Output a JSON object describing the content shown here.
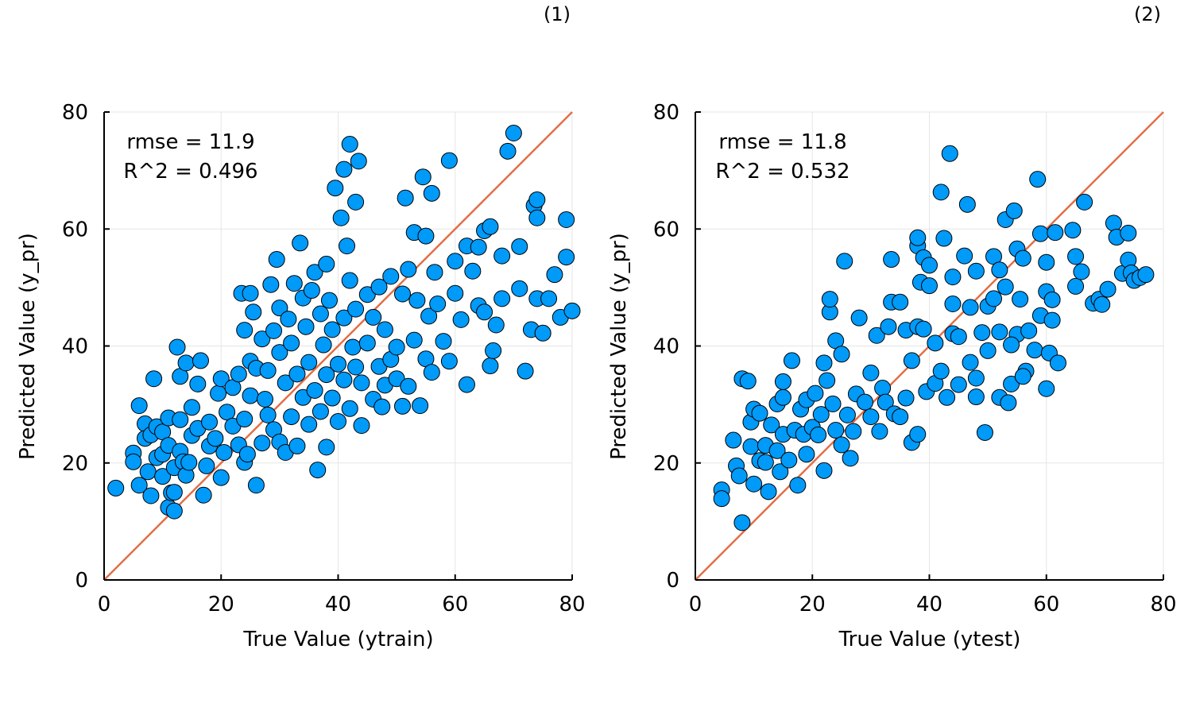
{
  "chart_data": [
    {
      "type": "scatter",
      "panel_label": "(1)",
      "xlabel": "True Value (ytrain)",
      "ylabel": "Predicted Value (y_pr)",
      "xlim": [
        0,
        80
      ],
      "ylim": [
        0,
        80
      ],
      "xticks": [
        "0",
        "20",
        "40",
        "60",
        "80"
      ],
      "yticks": [
        "0",
        "20",
        "40",
        "60",
        "80"
      ],
      "grid": true,
      "legend": "none",
      "annotations": [
        "rmse = 11.9",
        "R^2 = 0.496"
      ],
      "reference_line": {
        "from": [
          0,
          0
        ],
        "to": [
          80,
          80
        ],
        "color": "#e26f46"
      },
      "marker_color": "#009af9",
      "points": [
        [
          2,
          15.7
        ],
        [
          5,
          21.7
        ],
        [
          5,
          20.2
        ],
        [
          6,
          29.8
        ],
        [
          6,
          16.2
        ],
        [
          7,
          26.7
        ],
        [
          7,
          24.2
        ],
        [
          7.5,
          18.5
        ],
        [
          8,
          14.4
        ],
        [
          8,
          24.8
        ],
        [
          8.5,
          34.4
        ],
        [
          9,
          20.9
        ],
        [
          9,
          26.2
        ],
        [
          10,
          25.3
        ],
        [
          10,
          17.7
        ],
        [
          10,
          21.5
        ],
        [
          11,
          23
        ],
        [
          11,
          27.7
        ],
        [
          11,
          12.4
        ],
        [
          11.5,
          14.9
        ],
        [
          12,
          15
        ],
        [
          12,
          19.2
        ],
        [
          12,
          11.8
        ],
        [
          12.5,
          39.8
        ],
        [
          13,
          22
        ],
        [
          13,
          34.8
        ],
        [
          13,
          27.4
        ],
        [
          13.5,
          20.2
        ],
        [
          14,
          17.9
        ],
        [
          14,
          37.1
        ],
        [
          14.5,
          20.1
        ],
        [
          15,
          29.5
        ],
        [
          15,
          24.7
        ],
        [
          16,
          33.5
        ],
        [
          16,
          25.9
        ],
        [
          16.5,
          37.5
        ],
        [
          17,
          14.5
        ],
        [
          17.5,
          19.5
        ],
        [
          18,
          27
        ],
        [
          18,
          22.9
        ],
        [
          19,
          24.2
        ],
        [
          19.5,
          31.9
        ],
        [
          20,
          17.5
        ],
        [
          20,
          34.4
        ],
        [
          20.5,
          21.8
        ],
        [
          21,
          28.7
        ],
        [
          22,
          26.3
        ],
        [
          22,
          32.9
        ],
        [
          23,
          23.1
        ],
        [
          23,
          35.2
        ],
        [
          23.5,
          49
        ],
        [
          24,
          42.7
        ],
        [
          24,
          27.5
        ],
        [
          24,
          20.1
        ],
        [
          24.5,
          21.5
        ],
        [
          25,
          37.4
        ],
        [
          25,
          49
        ],
        [
          25,
          31.5
        ],
        [
          25.5,
          45.8
        ],
        [
          26,
          36.2
        ],
        [
          26,
          16.2
        ],
        [
          27,
          41.2
        ],
        [
          27,
          23.4
        ],
        [
          27.5,
          30.9
        ],
        [
          28,
          35.8
        ],
        [
          28,
          28.2
        ],
        [
          28.5,
          50.5
        ],
        [
          29,
          25.7
        ],
        [
          29,
          42.6
        ],
        [
          29.5,
          54.8
        ],
        [
          30,
          46.5
        ],
        [
          30,
          38.9
        ],
        [
          30,
          23.6
        ],
        [
          31,
          33.7
        ],
        [
          31,
          21.8
        ],
        [
          31.5,
          44.6
        ],
        [
          32,
          27.9
        ],
        [
          32,
          40.5
        ],
        [
          32.5,
          50.7
        ],
        [
          33,
          35.2
        ],
        [
          33,
          22.9
        ],
        [
          33.5,
          57.6
        ],
        [
          34,
          48.2
        ],
        [
          34,
          31.2
        ],
        [
          34.5,
          43.3
        ],
        [
          35,
          26.6
        ],
        [
          35,
          37.2
        ],
        [
          35.5,
          49.5
        ],
        [
          36,
          52.6
        ],
        [
          36,
          32.4
        ],
        [
          36.5,
          18.8
        ],
        [
          37,
          45.5
        ],
        [
          37,
          28.8
        ],
        [
          37.5,
          40.2
        ],
        [
          38,
          54
        ],
        [
          38,
          35.1
        ],
        [
          38,
          22.7
        ],
        [
          38.5,
          47.8
        ],
        [
          39,
          42.8
        ],
        [
          39,
          31.1
        ],
        [
          39.5,
          67
        ],
        [
          40,
          36.9
        ],
        [
          40,
          27.1
        ],
        [
          40.5,
          61.9
        ],
        [
          41,
          70.2
        ],
        [
          41,
          44.8
        ],
        [
          41,
          34.2
        ],
        [
          41.5,
          57.1
        ],
        [
          42,
          74.5
        ],
        [
          42,
          51.2
        ],
        [
          42,
          29.3
        ],
        [
          42.5,
          39.8
        ],
        [
          43,
          64.6
        ],
        [
          43,
          36.4
        ],
        [
          43,
          46.3
        ],
        [
          43.5,
          71.6
        ],
        [
          44,
          26.4
        ],
        [
          44,
          33.7
        ],
        [
          45,
          48.8
        ],
        [
          45,
          40.5
        ],
        [
          46,
          30.9
        ],
        [
          46,
          44.9
        ],
        [
          47,
          36.5
        ],
        [
          47,
          50.1
        ],
        [
          47.5,
          29.6
        ],
        [
          48,
          42.8
        ],
        [
          48,
          33.3
        ],
        [
          49,
          37.7
        ],
        [
          49,
          51.9
        ],
        [
          50,
          34.4
        ],
        [
          50,
          39.8
        ],
        [
          51,
          29.7
        ],
        [
          51,
          48.9
        ],
        [
          51.5,
          65.3
        ],
        [
          52,
          33.1
        ],
        [
          52,
          53.1
        ],
        [
          53,
          41
        ],
        [
          53,
          59.4
        ],
        [
          53.5,
          47.8
        ],
        [
          54,
          29.8
        ],
        [
          54.5,
          68.9
        ],
        [
          55,
          37.8
        ],
        [
          55,
          58.8
        ],
        [
          55.5,
          45.1
        ],
        [
          56,
          66.1
        ],
        [
          56,
          35.5
        ],
        [
          56.5,
          52.6
        ],
        [
          57,
          47.2
        ],
        [
          58,
          40.8
        ],
        [
          59,
          71.7
        ],
        [
          59,
          37.4
        ],
        [
          60,
          49
        ],
        [
          60,
          54.5
        ],
        [
          61,
          44.5
        ],
        [
          62,
          33.4
        ],
        [
          62,
          57.1
        ],
        [
          63,
          52.8
        ],
        [
          64,
          46.9
        ],
        [
          64,
          56.9
        ],
        [
          65,
          59.7
        ],
        [
          65,
          45.8
        ],
        [
          66,
          36.6
        ],
        [
          66,
          60.4
        ],
        [
          66.5,
          39.2
        ],
        [
          67,
          43.6
        ],
        [
          68,
          55.4
        ],
        [
          68,
          48.1
        ],
        [
          69,
          73.3
        ],
        [
          70,
          76.4
        ],
        [
          71,
          57
        ],
        [
          71,
          49.8
        ],
        [
          72,
          35.7
        ],
        [
          73,
          42.8
        ],
        [
          73.5,
          64
        ],
        [
          74,
          48.1
        ],
        [
          74,
          61.9
        ],
        [
          74,
          65
        ],
        [
          75,
          42.2
        ],
        [
          76,
          48.1
        ],
        [
          77,
          52.2
        ],
        [
          78,
          44.9
        ],
        [
          79,
          55.2
        ],
        [
          79,
          61.6
        ],
        [
          80,
          46
        ]
      ]
    },
    {
      "type": "scatter",
      "panel_label": "(2)",
      "xlabel": "True Value (ytest)",
      "ylabel": "Predicted Value (y_pr)",
      "xlim": [
        0,
        80
      ],
      "ylim": [
        0,
        80
      ],
      "xticks": [
        "0",
        "20",
        "40",
        "60",
        "80"
      ],
      "yticks": [
        "0",
        "20",
        "40",
        "60",
        "80"
      ],
      "grid": true,
      "legend": "none",
      "annotations": [
        "rmse = 11.8",
        "R^2 = 0.532"
      ],
      "reference_line": {
        "from": [
          0,
          0
        ],
        "to": [
          80,
          80
        ],
        "color": "#e26f46"
      },
      "marker_color": "#009af9",
      "points": [
        [
          4.5,
          15.4
        ],
        [
          4.5,
          13.9
        ],
        [
          6.5,
          23.9
        ],
        [
          7,
          19.5
        ],
        [
          7.5,
          17.8
        ],
        [
          8,
          9.8
        ],
        [
          8,
          34.4
        ],
        [
          9,
          34
        ],
        [
          9.5,
          27
        ],
        [
          9.5,
          22.8
        ],
        [
          10,
          16.4
        ],
        [
          10,
          29.2
        ],
        [
          11,
          20.4
        ],
        [
          11,
          28.5
        ],
        [
          12,
          23
        ],
        [
          12,
          20.1
        ],
        [
          12.5,
          15.1
        ],
        [
          13,
          26.5
        ],
        [
          14,
          30.1
        ],
        [
          14,
          22.1
        ],
        [
          14.5,
          18.5
        ],
        [
          15,
          24.9
        ],
        [
          15,
          31.2
        ],
        [
          15,
          33.9
        ],
        [
          16,
          20.5
        ],
        [
          16.5,
          37.5
        ],
        [
          17,
          25.6
        ],
        [
          17.5,
          16.2
        ],
        [
          18,
          29.2
        ],
        [
          18.5,
          24.9
        ],
        [
          19,
          30.8
        ],
        [
          19,
          21.5
        ],
        [
          20,
          26.1
        ],
        [
          20.5,
          31.9
        ],
        [
          21,
          24.8
        ],
        [
          21.5,
          28.3
        ],
        [
          22,
          18.7
        ],
        [
          22,
          37.1
        ],
        [
          22.5,
          34.1
        ],
        [
          23,
          45.8
        ],
        [
          23,
          48
        ],
        [
          23.5,
          30.1
        ],
        [
          24,
          25.6
        ],
        [
          24,
          40.9
        ],
        [
          25,
          38.6
        ],
        [
          25,
          23.1
        ],
        [
          25.5,
          54.5
        ],
        [
          26,
          28.2
        ],
        [
          26.5,
          20.8
        ],
        [
          27,
          25.4
        ],
        [
          27.5,
          31.8
        ],
        [
          28,
          44.8
        ],
        [
          29,
          30.4
        ],
        [
          30,
          35.4
        ],
        [
          30,
          27.9
        ],
        [
          31,
          41.8
        ],
        [
          31.5,
          25.4
        ],
        [
          32,
          32.8
        ],
        [
          32.5,
          30.4
        ],
        [
          33,
          43.3
        ],
        [
          33.5,
          47.5
        ],
        [
          33.5,
          54.8
        ],
        [
          34,
          28.4
        ],
        [
          35,
          47.5
        ],
        [
          35,
          27.9
        ],
        [
          36,
          42.7
        ],
        [
          36,
          31.1
        ],
        [
          37,
          23.5
        ],
        [
          37,
          37.5
        ],
        [
          38,
          57.1
        ],
        [
          38,
          43.3
        ],
        [
          38,
          24.9
        ],
        [
          38.5,
          50.9
        ],
        [
          39,
          55.1
        ],
        [
          39,
          42.9
        ],
        [
          39.5,
          32.2
        ],
        [
          40,
          53.8
        ],
        [
          40,
          50.3
        ],
        [
          41,
          33.6
        ],
        [
          41,
          40.5
        ],
        [
          42,
          66.3
        ],
        [
          42,
          35.7
        ],
        [
          42.5,
          58.4
        ],
        [
          43,
          31.2
        ],
        [
          43.5,
          72.9
        ],
        [
          44,
          42.1
        ],
        [
          44,
          51.8
        ],
        [
          45,
          33.4
        ],
        [
          45,
          41.6
        ],
        [
          46,
          55.4
        ],
        [
          46.5,
          64.2
        ],
        [
          47,
          46.6
        ],
        [
          47,
          37.2
        ],
        [
          48,
          34.5
        ],
        [
          48,
          31.3
        ],
        [
          49,
          42.3
        ],
        [
          49.5,
          25.2
        ],
        [
          50,
          46.8
        ],
        [
          50,
          39.2
        ],
        [
          51,
          55.3
        ],
        [
          51,
          48.1
        ],
        [
          52,
          31.2
        ],
        [
          52,
          42.4
        ],
        [
          53,
          61.6
        ],
        [
          53,
          50.1
        ],
        [
          53.5,
          30.3
        ],
        [
          54,
          33.5
        ],
        [
          54.5,
          63.1
        ],
        [
          55,
          56.6
        ],
        [
          55,
          42
        ],
        [
          55.5,
          48
        ],
        [
          56,
          55
        ],
        [
          56.5,
          35.7
        ],
        [
          57,
          42.6
        ],
        [
          58,
          39.3
        ],
        [
          58.5,
          68.5
        ],
        [
          59,
          59.2
        ],
        [
          59,
          45.2
        ],
        [
          60,
          54.3
        ],
        [
          60,
          49.3
        ],
        [
          60,
          32.7
        ],
        [
          60.5,
          38.8
        ],
        [
          61,
          44.4
        ],
        [
          61,
          47.9
        ],
        [
          61.5,
          59.4
        ],
        [
          62,
          37.1
        ],
        [
          64.5,
          59.8
        ],
        [
          65,
          55.3
        ],
        [
          65,
          50.2
        ],
        [
          66,
          52.7
        ],
        [
          66.5,
          64.6
        ],
        [
          68,
          47.3
        ],
        [
          69,
          48
        ],
        [
          69.5,
          47.1
        ],
        [
          70.5,
          49.7
        ],
        [
          71.5,
          61
        ],
        [
          72,
          58.6
        ],
        [
          73,
          52.4
        ],
        [
          74,
          59.3
        ],
        [
          74,
          54.7
        ],
        [
          74.5,
          52.5
        ],
        [
          75,
          51.2
        ],
        [
          76,
          51.7
        ],
        [
          77,
          52.2
        ],
        [
          38,
          58.5
        ],
        [
          44,
          47.2
        ],
        [
          48,
          52.8
        ],
        [
          52,
          53
        ],
        [
          54,
          40.2
        ],
        [
          56,
          34.8
        ]
      ]
    }
  ]
}
